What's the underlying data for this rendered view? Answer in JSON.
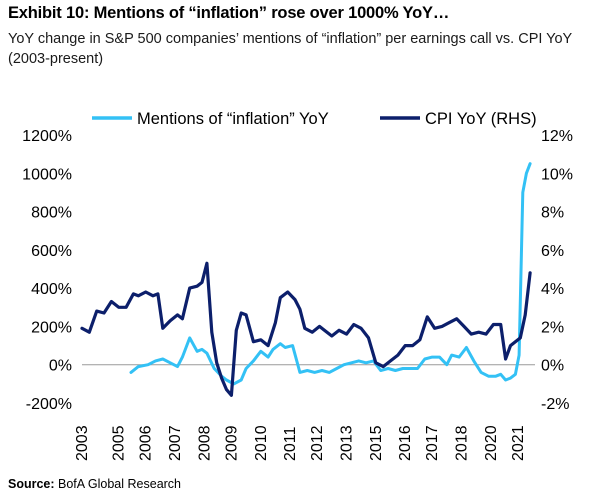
{
  "header": {
    "title": "Exhibit 10: Mentions of “inflation” rose over 1000% YoY…",
    "subtitle": "YoY change in S&P 500 companies’ mentions of “inflation” per earnings call vs. CPI YoY (2003-present)"
  },
  "footer": {
    "source_label": "Source:",
    "source_text": " BofA Global Research"
  },
  "colors": {
    "mentions": "#33c1f5",
    "cpi": "#0c1f6b",
    "zero_line": "#9a9a9a"
  },
  "chart_data": {
    "type": "line",
    "title": "Exhibit 10: Mentions of “inflation” rose over 1000% YoY…",
    "subtitle": "YoY change in S&P 500 companies’ mentions of “inflation” per earnings call vs. CPI YoY (2003-present)",
    "legend_position": "top",
    "grid": false,
    "x_tick_labels": [
      "2003",
      "2005",
      "2006",
      "2007",
      "2008",
      "2009",
      "2010",
      "2011",
      "2012",
      "2013",
      "2015",
      "2016",
      "2017",
      "2018",
      "2020",
      "2021"
    ],
    "x_tick_values": [
      2003,
      2004.5,
      2005.6,
      2006.8,
      2008.0,
      2009.1,
      2010.3,
      2011.5,
      2012.6,
      2013.8,
      2015.0,
      2016.2,
      2017.3,
      2018.5,
      2019.7,
      2020.8
    ],
    "x_range": [
      2003,
      2021.5
    ],
    "y_left": {
      "range": [
        -200,
        1200
      ],
      "ticks": [
        -200,
        0,
        200,
        400,
        600,
        800,
        1000,
        1200
      ],
      "tick_labels": [
        "-200%",
        "0%",
        "200%",
        "400%",
        "600%",
        "800%",
        "1000%",
        "1200%"
      ]
    },
    "y_right": {
      "range": [
        -2,
        12
      ],
      "ticks": [
        -2,
        0,
        2,
        4,
        6,
        8,
        10,
        12
      ],
      "tick_labels": [
        "-2%",
        "0%",
        "2%",
        "4%",
        "6%",
        "8%",
        "10%",
        "12%"
      ]
    },
    "series": [
      {
        "name": "Mentions of “inflation” YoY",
        "axis": "left",
        "x": [
          2005.0,
          2005.3,
          2005.7,
          2006.0,
          2006.3,
          2006.6,
          2006.9,
          2007.1,
          2007.4,
          2007.7,
          2007.9,
          2008.1,
          2008.4,
          2008.7,
          2008.9,
          2009.2,
          2009.5,
          2009.7,
          2010.0,
          2010.3,
          2010.6,
          2010.8,
          2011.1,
          2011.3,
          2011.6,
          2011.9,
          2012.2,
          2012.5,
          2012.8,
          2013.1,
          2013.4,
          2013.7,
          2014.0,
          2014.3,
          2014.6,
          2014.9,
          2015.2,
          2015.5,
          2015.8,
          2016.1,
          2016.4,
          2016.7,
          2017.0,
          2017.3,
          2017.6,
          2017.9,
          2018.1,
          2018.4,
          2018.7,
          2019.0,
          2019.3,
          2019.6,
          2019.9,
          2020.1,
          2020.3,
          2020.5,
          2020.7,
          2020.85,
          2021.0,
          2021.15,
          2021.3
        ],
        "y": [
          -40,
          -10,
          0,
          20,
          30,
          10,
          -10,
          40,
          140,
          70,
          80,
          60,
          -20,
          -60,
          -80,
          -100,
          -80,
          -20,
          20,
          70,
          40,
          80,
          110,
          90,
          100,
          -40,
          -30,
          -40,
          -30,
          -40,
          -20,
          0,
          10,
          20,
          10,
          20,
          -30,
          -20,
          -30,
          -20,
          -20,
          -20,
          30,
          40,
          40,
          0,
          50,
          40,
          90,
          20,
          -40,
          -60,
          -60,
          -50,
          -80,
          -70,
          -50,
          50,
          900,
          1000,
          1050
        ]
      },
      {
        "name": "CPI YoY (RHS)",
        "axis": "right",
        "x": [
          2003.0,
          2003.3,
          2003.6,
          2003.9,
          2004.2,
          2004.5,
          2004.8,
          2005.1,
          2005.3,
          2005.6,
          2005.9,
          2006.1,
          2006.3,
          2006.6,
          2006.9,
          2007.1,
          2007.4,
          2007.7,
          2007.9,
          2008.1,
          2008.3,
          2008.5,
          2008.7,
          2008.9,
          2009.1,
          2009.3,
          2009.5,
          2009.7,
          2010.0,
          2010.3,
          2010.6,
          2010.9,
          2011.1,
          2011.4,
          2011.7,
          2011.9,
          2012.1,
          2012.4,
          2012.7,
          2012.9,
          2013.2,
          2013.5,
          2013.8,
          2014.1,
          2014.4,
          2014.7,
          2015.0,
          2015.3,
          2015.6,
          2015.9,
          2016.2,
          2016.5,
          2016.8,
          2017.1,
          2017.4,
          2017.7,
          2018.0,
          2018.3,
          2018.6,
          2018.9,
          2019.2,
          2019.5,
          2019.8,
          2020.1,
          2020.3,
          2020.5,
          2020.7,
          2020.9,
          2021.1,
          2021.3
        ],
        "y": [
          1.9,
          1.7,
          2.8,
          2.7,
          3.3,
          3.0,
          3.0,
          3.7,
          3.6,
          3.8,
          3.6,
          3.7,
          1.9,
          2.3,
          2.6,
          2.4,
          4.0,
          4.1,
          4.3,
          5.3,
          1.7,
          0.1,
          -0.7,
          -1.3,
          -1.6,
          1.8,
          2.7,
          2.6,
          1.2,
          1.3,
          1.0,
          2.2,
          3.5,
          3.8,
          3.4,
          2.9,
          1.9,
          1.7,
          2.0,
          1.8,
          1.5,
          1.8,
          1.6,
          2.1,
          1.9,
          1.4,
          0.1,
          -0.1,
          0.2,
          0.5,
          1.0,
          1.0,
          1.3,
          2.5,
          1.9,
          2.0,
          2.2,
          2.4,
          2.0,
          1.6,
          1.7,
          1.6,
          2.1,
          2.1,
          0.3,
          1.0,
          1.2,
          1.4,
          2.6,
          4.8
        ]
      }
    ]
  }
}
